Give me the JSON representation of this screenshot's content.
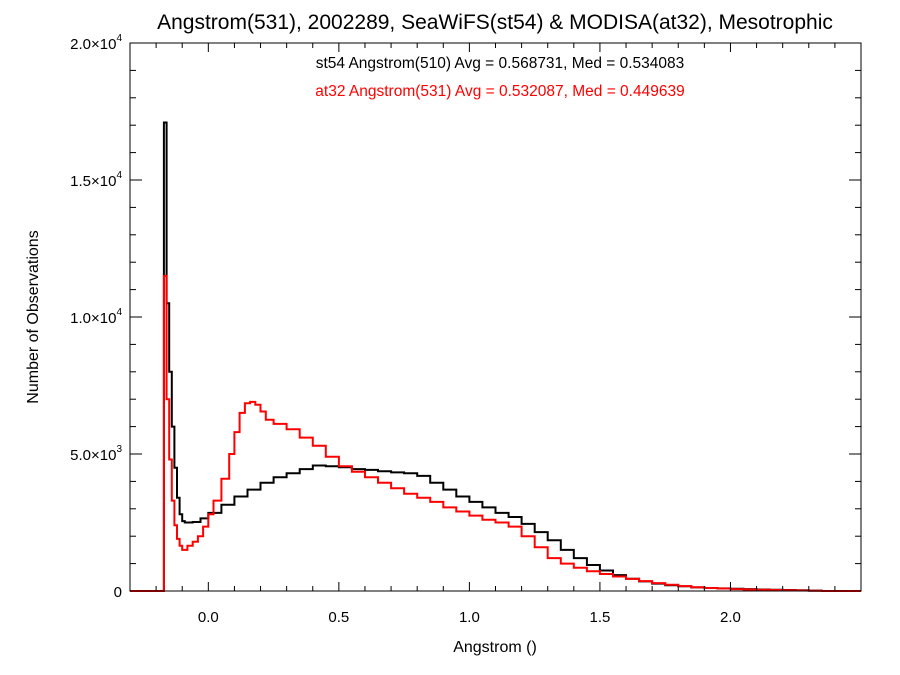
{
  "chart_data": {
    "type": "line",
    "style": "step-histogram",
    "title": "Angstrom(531), 2002289, SeaWiFS(st54) & MODISA(at32), Mesotrophic",
    "xlabel": "Angstrom ()",
    "ylabel": "Number of Observations",
    "xlim": [
      -0.3,
      2.5
    ],
    "ylim": [
      0,
      20000
    ],
    "x_ticks": [
      {
        "value": 0.0,
        "label": "0.0"
      },
      {
        "value": 0.5,
        "label": "0.5"
      },
      {
        "value": 1.0,
        "label": "1.0"
      },
      {
        "value": 1.5,
        "label": "1.5"
      },
      {
        "value": 2.0,
        "label": "2.0"
      }
    ],
    "y_ticks": [
      {
        "value": 0,
        "mantissa": "0",
        "exponent": ""
      },
      {
        "value": 5000,
        "mantissa": "5.0×10",
        "exponent": "3"
      },
      {
        "value": 10000,
        "mantissa": "1.0×10",
        "exponent": "4"
      },
      {
        "value": 15000,
        "mantissa": "1.5×10",
        "exponent": "4"
      },
      {
        "value": 20000,
        "mantissa": "2.0×10",
        "exponent": "4"
      }
    ],
    "grid": false,
    "legend_placement": "top-center",
    "annotations": [
      {
        "text": "st54 Angstrom(510) Avg = 0.568731, Med = 0.534083",
        "color": "#000000"
      },
      {
        "text": "at32 Angstrom(531) Avg = 0.532087, Med = 0.449639",
        "color": "#ff0000"
      }
    ],
    "series": [
      {
        "color": "#000000",
        "points": [
          [
            -0.17,
            0
          ],
          [
            -0.17,
            17100
          ],
          [
            -0.16,
            10500
          ],
          [
            -0.15,
            8000
          ],
          [
            -0.14,
            6000
          ],
          [
            -0.13,
            4500
          ],
          [
            -0.12,
            3400
          ],
          [
            -0.11,
            2800
          ],
          [
            -0.1,
            2550
          ],
          [
            -0.09,
            2500
          ],
          [
            -0.06,
            2520
          ],
          [
            -0.03,
            2650
          ],
          [
            0.0,
            2850
          ],
          [
            0.05,
            3150
          ],
          [
            0.1,
            3450
          ],
          [
            0.15,
            3700
          ],
          [
            0.2,
            3950
          ],
          [
            0.25,
            4150
          ],
          [
            0.3,
            4300
          ],
          [
            0.35,
            4450
          ],
          [
            0.4,
            4580
          ],
          [
            0.45,
            4550
          ],
          [
            0.5,
            4520
          ],
          [
            0.55,
            4450
          ],
          [
            0.6,
            4420
          ],
          [
            0.65,
            4370
          ],
          [
            0.7,
            4330
          ],
          [
            0.75,
            4300
          ],
          [
            0.8,
            4200
          ],
          [
            0.85,
            3950
          ],
          [
            0.9,
            3700
          ],
          [
            0.95,
            3450
          ],
          [
            1.0,
            3250
          ],
          [
            1.05,
            3050
          ],
          [
            1.1,
            2850
          ],
          [
            1.15,
            2700
          ],
          [
            1.2,
            2450
          ],
          [
            1.25,
            2150
          ],
          [
            1.3,
            1850
          ],
          [
            1.35,
            1500
          ],
          [
            1.4,
            1200
          ],
          [
            1.45,
            950
          ],
          [
            1.5,
            750
          ],
          [
            1.55,
            580
          ],
          [
            1.6,
            450
          ],
          [
            1.65,
            350
          ],
          [
            1.7,
            270
          ],
          [
            1.75,
            210
          ],
          [
            1.8,
            170
          ],
          [
            1.85,
            130
          ],
          [
            1.9,
            110
          ],
          [
            1.95,
            95
          ],
          [
            2.0,
            80
          ],
          [
            2.05,
            70
          ],
          [
            2.1,
            55
          ],
          [
            2.15,
            45
          ],
          [
            2.2,
            35
          ],
          [
            2.25,
            25
          ],
          [
            2.3,
            15
          ],
          [
            2.35,
            0
          ]
        ]
      },
      {
        "color": "#ff0000",
        "points": [
          [
            -0.3,
            0
          ],
          [
            -0.17,
            0
          ],
          [
            -0.17,
            11500
          ],
          [
            -0.16,
            7000
          ],
          [
            -0.15,
            4800
          ],
          [
            -0.14,
            3300
          ],
          [
            -0.13,
            2400
          ],
          [
            -0.12,
            1900
          ],
          [
            -0.11,
            1650
          ],
          [
            -0.1,
            1500
          ],
          [
            -0.08,
            1650
          ],
          [
            -0.06,
            1800
          ],
          [
            -0.04,
            2000
          ],
          [
            -0.02,
            2350
          ],
          [
            0.0,
            2800
          ],
          [
            0.02,
            3300
          ],
          [
            0.05,
            4100
          ],
          [
            0.08,
            5000
          ],
          [
            0.1,
            5800
          ],
          [
            0.12,
            6500
          ],
          [
            0.14,
            6850
          ],
          [
            0.16,
            6900
          ],
          [
            0.18,
            6800
          ],
          [
            0.2,
            6550
          ],
          [
            0.22,
            6250
          ],
          [
            0.25,
            6100
          ],
          [
            0.3,
            5900
          ],
          [
            0.35,
            5600
          ],
          [
            0.4,
            5300
          ],
          [
            0.45,
            4900
          ],
          [
            0.5,
            4550
          ],
          [
            0.55,
            4350
          ],
          [
            0.6,
            4150
          ],
          [
            0.65,
            3950
          ],
          [
            0.7,
            3750
          ],
          [
            0.75,
            3550
          ],
          [
            0.8,
            3400
          ],
          [
            0.85,
            3250
          ],
          [
            0.9,
            3050
          ],
          [
            0.95,
            2900
          ],
          [
            1.0,
            2750
          ],
          [
            1.05,
            2600
          ],
          [
            1.1,
            2500
          ],
          [
            1.15,
            2350
          ],
          [
            1.2,
            2000
          ],
          [
            1.25,
            1600
          ],
          [
            1.3,
            1200
          ],
          [
            1.35,
            1000
          ],
          [
            1.4,
            850
          ],
          [
            1.45,
            720
          ],
          [
            1.5,
            620
          ],
          [
            1.55,
            530
          ],
          [
            1.6,
            440
          ],
          [
            1.65,
            360
          ],
          [
            1.7,
            290
          ],
          [
            1.75,
            230
          ],
          [
            1.8,
            180
          ],
          [
            1.85,
            140
          ],
          [
            1.9,
            110
          ],
          [
            1.95,
            90
          ],
          [
            2.0,
            70
          ],
          [
            2.05,
            55
          ],
          [
            2.1,
            45
          ],
          [
            2.15,
            35
          ],
          [
            2.2,
            25
          ],
          [
            2.25,
            18
          ],
          [
            2.3,
            12
          ],
          [
            2.35,
            0
          ],
          [
            2.5,
            0
          ]
        ]
      }
    ]
  }
}
